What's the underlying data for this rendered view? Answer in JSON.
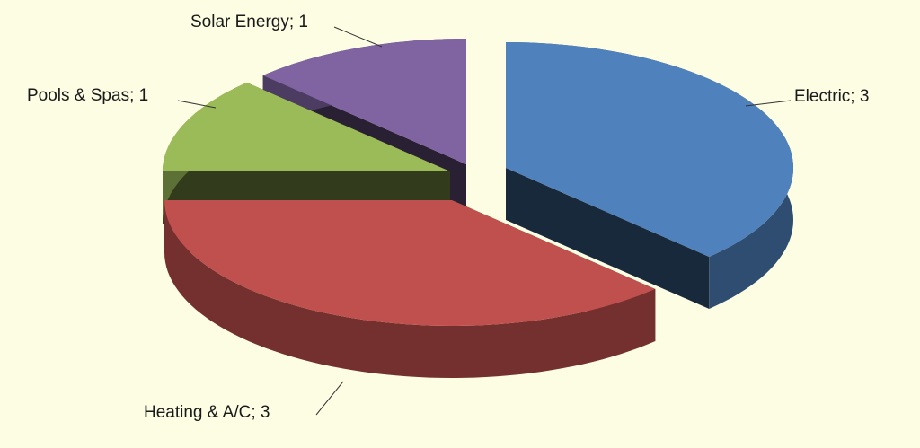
{
  "chart_data": {
    "type": "pie3d",
    "values": [
      3,
      3,
      1,
      1
    ],
    "value_labels": [
      "Electric; 3",
      "Heating & A/C; 3",
      "Pools & Spas; 1",
      "Solar Energy; 1"
    ],
    "colors": [
      "#4f81bd",
      "#c0504d",
      "#9bbb59",
      "#8064a2"
    ]
  }
}
